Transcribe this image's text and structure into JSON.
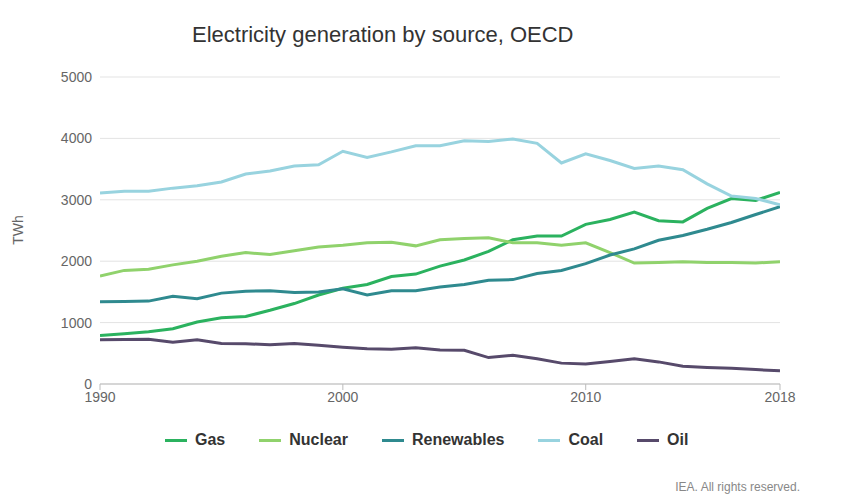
{
  "chart_data": {
    "type": "line",
    "title": "Electricity generation by source, OECD",
    "ylabel": "TWh",
    "source": "IEA. All rights reserved.",
    "x": [
      1990,
      1991,
      1992,
      1993,
      1994,
      1995,
      1996,
      1997,
      1998,
      1999,
      2000,
      2001,
      2002,
      2003,
      2004,
      2005,
      2006,
      2007,
      2008,
      2009,
      2010,
      2011,
      2012,
      2013,
      2014,
      2015,
      2016,
      2017,
      2018
    ],
    "series": [
      {
        "name": "Gas",
        "color": "#2bb25f",
        "values": [
          790,
          820,
          850,
          900,
          1010,
          1080,
          1100,
          1200,
          1310,
          1450,
          1560,
          1620,
          1750,
          1790,
          1920,
          2020,
          2160,
          2350,
          2410,
          2410,
          2600,
          2680,
          2800,
          2660,
          2640,
          2860,
          3020,
          2990,
          3120
        ]
      },
      {
        "name": "Nuclear",
        "color": "#90d26c",
        "values": [
          1760,
          1850,
          1870,
          1940,
          2000,
          2080,
          2140,
          2110,
          2170,
          2230,
          2260,
          2300,
          2310,
          2250,
          2350,
          2370,
          2380,
          2300,
          2300,
          2260,
          2300,
          2140,
          1970,
          1980,
          1990,
          1980,
          1980,
          1970,
          1990
        ]
      },
      {
        "name": "Renewables",
        "color": "#2f8a8f",
        "values": [
          1340,
          1345,
          1350,
          1430,
          1390,
          1480,
          1510,
          1520,
          1490,
          1500,
          1550,
          1450,
          1520,
          1520,
          1580,
          1620,
          1690,
          1700,
          1800,
          1850,
          1960,
          2100,
          2200,
          2340,
          2420,
          2520,
          2630,
          2760,
          2890
        ]
      },
      {
        "name": "Coal",
        "color": "#98d3df",
        "values": [
          3110,
          3140,
          3140,
          3190,
          3230,
          3290,
          3420,
          3470,
          3550,
          3570,
          3790,
          3690,
          3780,
          3880,
          3880,
          3960,
          3950,
          3990,
          3920,
          3600,
          3750,
          3640,
          3510,
          3550,
          3490,
          3260,
          3060,
          3020,
          2920
        ]
      },
      {
        "name": "Oil",
        "color": "#574a6b",
        "values": [
          720,
          725,
          730,
          680,
          720,
          660,
          655,
          640,
          660,
          630,
          600,
          575,
          565,
          590,
          555,
          550,
          430,
          470,
          410,
          340,
          325,
          365,
          410,
          360,
          290,
          270,
          255,
          235,
          215
        ]
      }
    ],
    "xlim": [
      1990,
      2018
    ],
    "xticks": [
      1990,
      2000,
      2010,
      2018
    ],
    "ylim": [
      0,
      5000
    ],
    "yticks": [
      0,
      1000,
      2000,
      3000,
      4000,
      5000
    ],
    "grid": true,
    "legend": "bottom"
  }
}
